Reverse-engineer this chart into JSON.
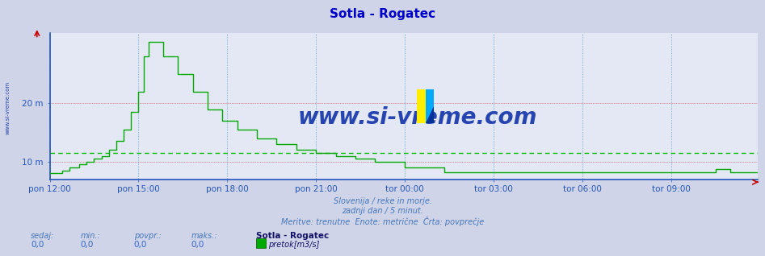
{
  "title": "Sotla - Rogatec",
  "title_color": "#0000cc",
  "title_fontsize": 11,
  "bg_color": "#d0d4e8",
  "plot_bg_color": "#e4e8f4",
  "grid_color_h": "#cc3333",
  "grid_color_v": "#3388cc",
  "line_color": "#00aa00",
  "avg_line_color": "#00bb00",
  "avg_value": 11.5,
  "ylabel_color": "#3366bb",
  "ytick_labels": [
    "10 m",
    "20 m"
  ],
  "ytick_values": [
    10,
    20
  ],
  "ylim": [
    7,
    32
  ],
  "xtick_labels": [
    "pon 12:00",
    "pon 15:00",
    "pon 18:00",
    "pon 21:00",
    "tor 00:00",
    "tor 03:00",
    "tor 06:00",
    "tor 09:00"
  ],
  "xtick_positions": [
    0,
    36,
    72,
    108,
    144,
    180,
    216,
    252
  ],
  "total_points": 288,
  "watermark_text": "www.si-vreme.com",
  "watermark_color": "#1133aa",
  "watermark_fontsize": 20,
  "subtitle1": "Slovenija / reke in morje.",
  "subtitle2": "zadnji dan / 5 minut.",
  "subtitle3": "Meritve: trenutne  Enote: metrične  Črta: povprečje",
  "subtitle_color": "#4477bb",
  "footer_left_labels": [
    "sedaj:",
    "min.:",
    "povpr.:",
    "maks.:"
  ],
  "footer_left_values": [
    "0,0",
    "0,0",
    "0,0",
    "0,0"
  ],
  "footer_left_color": "#4477bb",
  "footer_value_color": "#3366cc",
  "footer_station": "Sotla - Rogatec",
  "footer_station_color": "#111166",
  "footer_legend_label": "pretok[m3/s]",
  "footer_legend_color": "#00aa00",
  "axis_color": "#2255bb",
  "tick_color": "#2255bb",
  "logo_color_yellow": "#ffee00",
  "logo_color_blue": "#00aaff",
  "logo_color_dark": "#003399"
}
